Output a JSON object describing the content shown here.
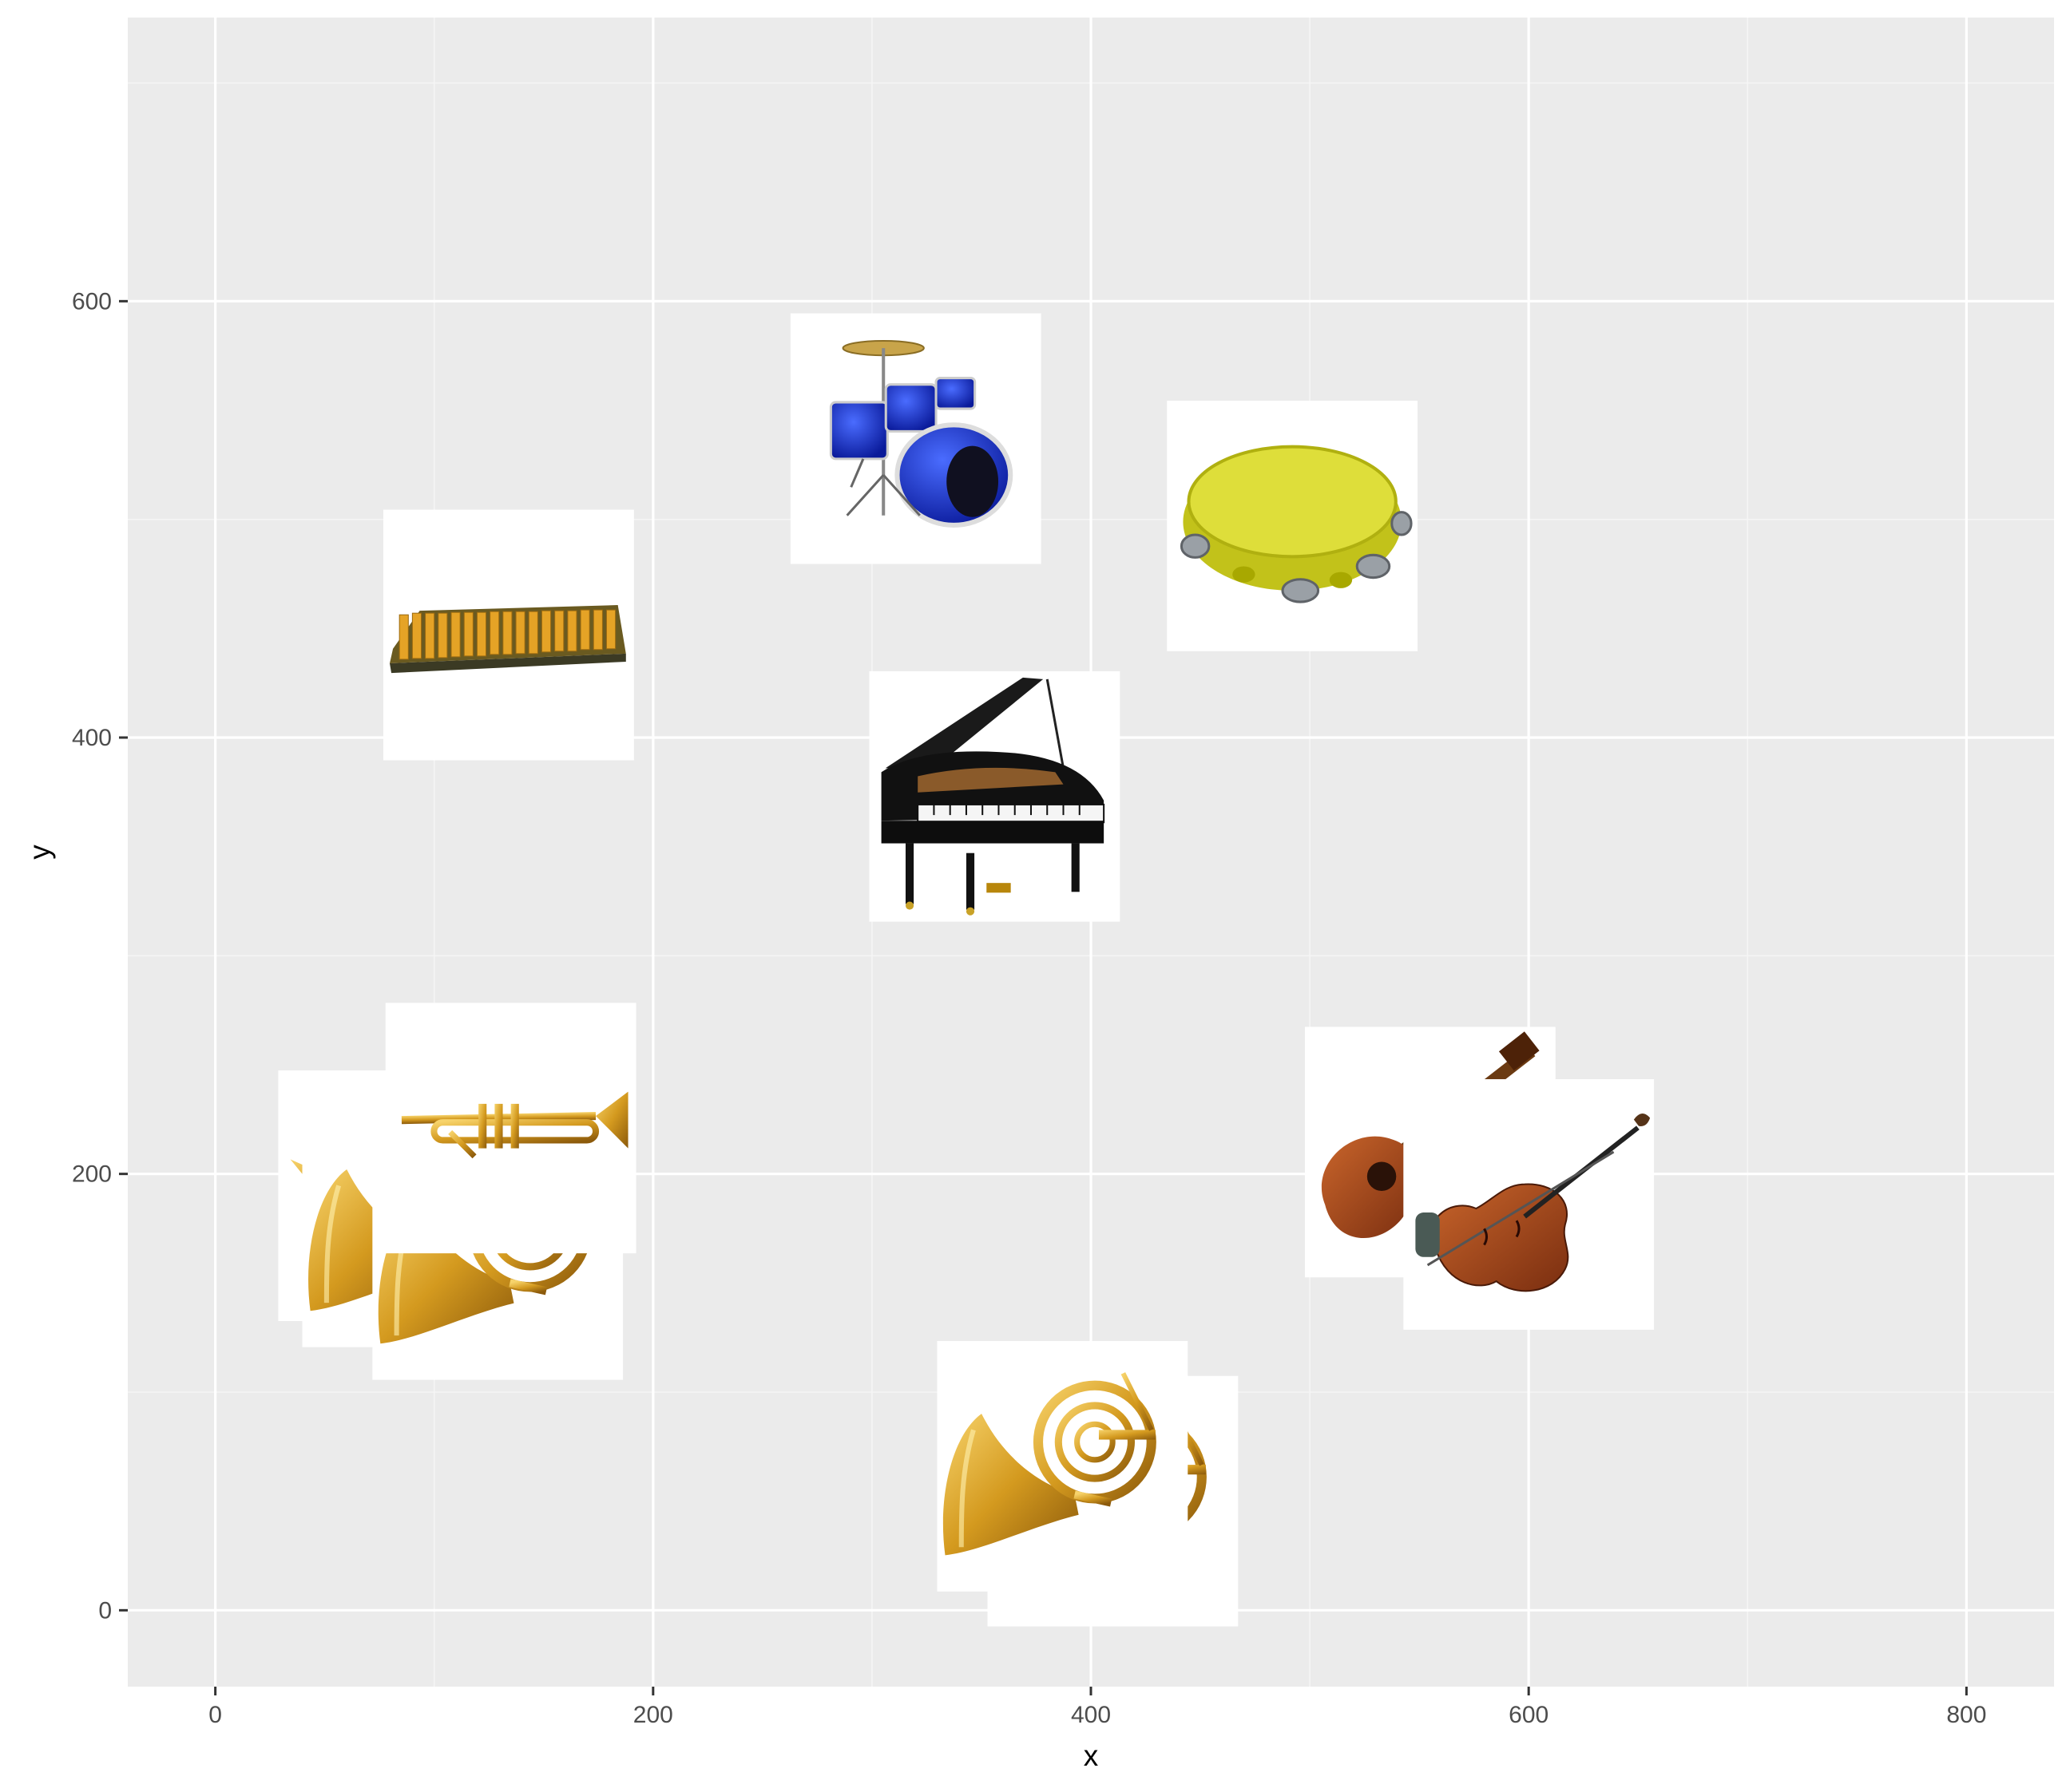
{
  "chart_data": {
    "type": "scatter",
    "title": "",
    "xlabel": "x",
    "ylabel": "y",
    "xlim": [
      -40,
      840
    ],
    "ylim": [
      -35,
      730
    ],
    "x_ticks": [
      0,
      200,
      400,
      600,
      800
    ],
    "y_ticks": [
      0,
      200,
      400,
      600
    ],
    "grid": true,
    "legend": "none",
    "points": [
      {
        "label": "drum kit",
        "x": 320,
        "y": 537,
        "icon": "drum-kit-icon"
      },
      {
        "label": "tambourine",
        "x": 492,
        "y": 497,
        "icon": "tambourine-icon"
      },
      {
        "label": "xylophone",
        "x": 134,
        "y": 447,
        "icon": "xylophone-icon"
      },
      {
        "label": "grand piano",
        "x": 356,
        "y": 373,
        "icon": "grand-piano-icon"
      },
      {
        "label": "acoustic guitar",
        "x": 555,
        "y": 210,
        "icon": "guitar-icon"
      },
      {
        "label": "violin",
        "x": 600,
        "y": 186,
        "icon": "violin-icon"
      },
      {
        "label": "cornet",
        "x": 86,
        "y": 190,
        "icon": "cornet-icon"
      },
      {
        "label": "horn partial",
        "x": 97,
        "y": 178,
        "icon": "horn-icon"
      },
      {
        "label": "french horn (back)",
        "x": 129,
        "y": 163,
        "icon": "horn-icon"
      },
      {
        "label": "trumpet",
        "x": 135,
        "y": 221,
        "icon": "trumpet-icon"
      },
      {
        "label": "french horn (back)",
        "x": 410,
        "y": 50,
        "icon": "horn-icon"
      },
      {
        "label": "french horn",
        "x": 387,
        "y": 66,
        "icon": "horn-icon"
      }
    ]
  },
  "colors": {
    "panel": "#ebebeb",
    "grid_major": "#ffffff",
    "grid_minor": "#f5f5f5",
    "tick_text": "#4d4d4d"
  }
}
